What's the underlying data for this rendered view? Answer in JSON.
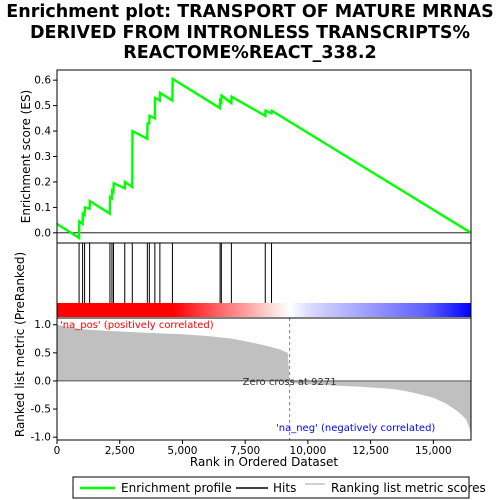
{
  "title_lines": [
    "Enrichment plot: TRANSPORT OF MATURE MRNAS",
    "DERIVED FROM INTRONLESS TRANSCRIPTS%",
    "REACTOME%REACT_338.2"
  ],
  "chart_data": [
    {
      "type": "line",
      "name": "enrichment-score-panel",
      "ylabel": "Enrichment score (ES)",
      "xlim": [
        0,
        16500
      ],
      "ylim": [
        -0.04,
        0.64
      ],
      "yticks": [
        0.0,
        0.1,
        0.2,
        0.3,
        0.4,
        0.5,
        0.6
      ],
      "series": [
        {
          "name": "Enrichment profile",
          "color": "#00ff00",
          "x": [
            0,
            880,
            890,
            1020,
            1030,
            1100,
            1110,
            1300,
            1310,
            2110,
            2120,
            2190,
            2200,
            2250,
            2260,
            2700,
            2710,
            3000,
            3010,
            3600,
            3610,
            3680,
            3690,
            3900,
            3910,
            4100,
            4110,
            4600,
            4610,
            6500,
            6510,
            6550,
            6560,
            6950,
            6960,
            8300,
            8310,
            8550,
            8560,
            16500
          ],
          "y": [
            0.035,
            -0.02,
            0.045,
            0.035,
            0.075,
            0.07,
            0.1,
            0.095,
            0.125,
            0.075,
            0.14,
            0.135,
            0.165,
            0.16,
            0.195,
            0.175,
            0.2,
            0.18,
            0.4,
            0.37,
            0.43,
            0.43,
            0.46,
            0.45,
            0.53,
            0.52,
            0.55,
            0.52,
            0.605,
            0.49,
            0.52,
            0.515,
            0.54,
            0.51,
            0.535,
            0.46,
            0.48,
            0.47,
            0.48,
            0.0
          ]
        }
      ]
    },
    {
      "type": "hits",
      "name": "hits-panel",
      "hits": [
        880,
        1020,
        1100,
        1300,
        2110,
        2190,
        2250,
        2700,
        3000,
        3600,
        3680,
        3900,
        4100,
        4600,
        6500,
        6550,
        6950,
        8300,
        8550
      ],
      "color": "#000000"
    },
    {
      "type": "area",
      "name": "ranked-metric-panel",
      "ylabel": "Ranked list metric (PreRanked)",
      "xlabel": "Rank in Ordered Dataset",
      "xlim": [
        0,
        16500
      ],
      "ylim": [
        -1.05,
        1.12
      ],
      "yticks": [
        -1.0,
        -0.5,
        0.0,
        0.5,
        1.0
      ],
      "xticks": [
        0,
        2500,
        5000,
        7500,
        10000,
        12500,
        15000
      ],
      "xtick_labels": [
        "0",
        "2,500",
        "5,000",
        "7,500",
        "10,000",
        "12,500",
        "15,000"
      ],
      "fill_color": "#c0c0c0",
      "x": [
        0,
        300,
        1000,
        2000,
        3000,
        4000,
        5000,
        6000,
        7000,
        7800,
        8400,
        8900,
        9200,
        9271,
        9300,
        10000,
        11000,
        12000,
        13000,
        13500,
        14000,
        14500,
        15000,
        15500,
        16000,
        16300,
        16450,
        16500
      ],
      "y": [
        1.0,
        0.97,
        0.92,
        0.89,
        0.87,
        0.85,
        0.83,
        0.8,
        0.75,
        0.68,
        0.62,
        0.56,
        0.5,
        0.0,
        -0.03,
        -0.06,
        -0.08,
        -0.1,
        -0.13,
        -0.15,
        -0.19,
        -0.24,
        -0.3,
        -0.4,
        -0.55,
        -0.68,
        -0.85,
        -1.0
      ],
      "zero_cross_label": "Zero cross at 9271",
      "zero_cross_x": 9271,
      "pos_label": "'na_pos' (positively correlated)",
      "neg_label": "'na_neg' (negatively correlated)",
      "pos_color": "#ff0000",
      "neg_color": "#0000ff"
    }
  ],
  "legend": {
    "items": [
      {
        "label": "Enrichment profile",
        "color": "#00ff00"
      },
      {
        "label": "Hits",
        "color": "#000000"
      },
      {
        "label": "Ranking list metric scores",
        "color": "#c0c0c0"
      }
    ]
  }
}
